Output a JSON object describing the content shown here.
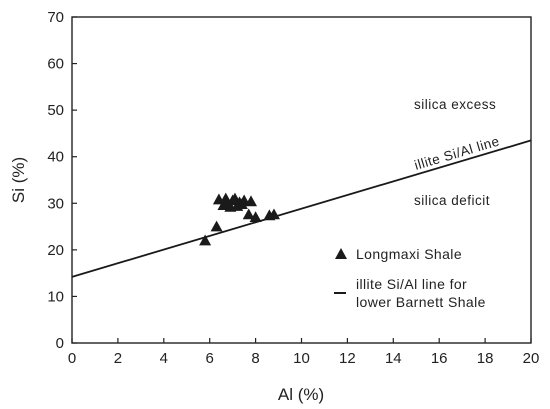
{
  "chart_data": {
    "type": "scatter",
    "xlabel": "Al (%)",
    "ylabel": "Si (%)",
    "xlim": [
      0,
      20
    ],
    "ylim": [
      0,
      70
    ],
    "xticks": [
      0,
      2,
      4,
      6,
      8,
      10,
      12,
      14,
      16,
      18,
      20
    ],
    "yticks": [
      0,
      10,
      20,
      30,
      40,
      50,
      60,
      70
    ],
    "grid": false,
    "legend_position": "right",
    "series": [
      {
        "name": "Longmaxi Shale",
        "marker": "triangle",
        "color": "#1a1a1a",
        "points": [
          {
            "x": 5.8,
            "y": 22.0
          },
          {
            "x": 6.3,
            "y": 25.0
          },
          {
            "x": 6.4,
            "y": 30.8
          },
          {
            "x": 6.6,
            "y": 29.6
          },
          {
            "x": 6.7,
            "y": 31.0
          },
          {
            "x": 6.8,
            "y": 30.0
          },
          {
            "x": 6.9,
            "y": 29.2
          },
          {
            "x": 7.0,
            "y": 30.6
          },
          {
            "x": 7.1,
            "y": 31.0
          },
          {
            "x": 7.2,
            "y": 29.4
          },
          {
            "x": 7.3,
            "y": 30.2
          },
          {
            "x": 7.4,
            "y": 29.8
          },
          {
            "x": 7.5,
            "y": 30.6
          },
          {
            "x": 7.8,
            "y": 30.4
          },
          {
            "x": 7.7,
            "y": 27.6
          },
          {
            "x": 8.0,
            "y": 27.0
          },
          {
            "x": 8.6,
            "y": 27.4
          },
          {
            "x": 8.8,
            "y": 27.6
          }
        ]
      },
      {
        "name": "illite Si/Al line for lower Barnett Shale",
        "type": "line",
        "color": "#1a1a1a",
        "points": [
          {
            "x": 0,
            "y": 14.2
          },
          {
            "x": 20,
            "y": 43.5
          }
        ]
      }
    ],
    "annotations": {
      "line_label": "illite Si/Al line",
      "upper_region": "silica excess",
      "lower_region": "silica deficit"
    },
    "legend": {
      "triangle_label": "Longmaxi Shale",
      "line_label_1": "illite Si/Al line for",
      "line_label_2": "lower Barnett Shale"
    }
  }
}
